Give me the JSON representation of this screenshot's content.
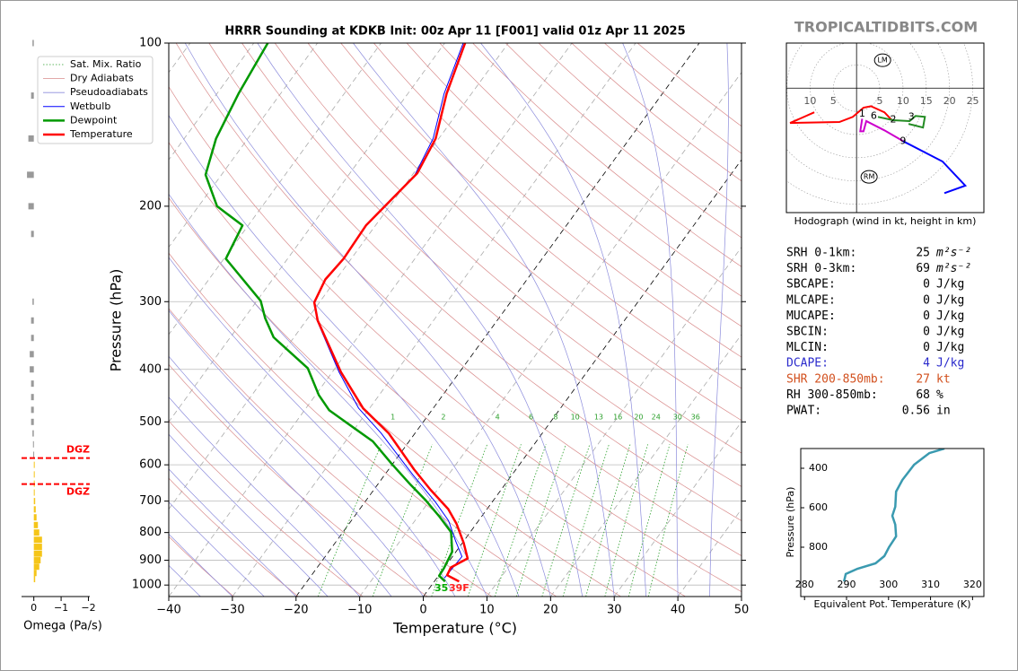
{
  "header": {
    "brand": "TROPICALTIDBITS.COM"
  },
  "chart_data": [
    {
      "type": "skewt",
      "title": "HRRR Sounding at KDKB Init: 00z Apr 11 [F001] valid 01z Apr 11 2025",
      "xlabel": "Temperature (°C)",
      "ylabel": "Pressure (hPa)",
      "xlim": [
        -40,
        50
      ],
      "ylim": [
        1050,
        100
      ],
      "log_y": true,
      "grid": true,
      "legend": "upper left",
      "xticks": [
        {
          "value": -40,
          "label": "−40"
        },
        {
          "value": -30,
          "label": "−30"
        },
        {
          "value": -20,
          "label": "−20"
        },
        {
          "value": -10,
          "label": "−10"
        },
        0,
        10,
        20,
        30,
        40,
        50
      ],
      "yticks": [
        100,
        200,
        300,
        400,
        500,
        600,
        700,
        800,
        900,
        1000
      ],
      "isotherm_highlight": [
        -20,
        0
      ],
      "reference_lines": [
        {
          "name": "Sat. Mix. Ratio",
          "color": "#2ca02c",
          "style": "dotted",
          "values": [
            1,
            2,
            4,
            6,
            8,
            10,
            13,
            16,
            20,
            24,
            30,
            36
          ]
        },
        {
          "name": "Dry Adiabats",
          "color": "#d98c8c",
          "style": "solid"
        },
        {
          "name": "Pseudoadiabats",
          "color": "#8c8cdc",
          "style": "solid"
        }
      ],
      "series": [
        {
          "name": "Wetbulb",
          "color": "#0000ff",
          "width": 1,
          "pressure": [
            970,
            886,
            829,
            761,
            703,
            627,
            524,
            472,
            405,
            325,
            301,
            273,
            250,
            217,
            175,
            150,
            124,
            100
          ],
          "values": [
            1.2,
            1.5,
            -1.3,
            -4.7,
            -8.9,
            -15.5,
            -25.4,
            -31.7,
            -38.9,
            -48.3,
            -50.8,
            -51.7,
            -51.2,
            -51.5,
            -49.6,
            -50.9,
            -54.3,
            -57.1
          ]
        },
        {
          "name": "Dewpoint",
          "color": "#009900",
          "width": 2.5,
          "pressure": [
            985,
            961,
            931,
            868,
            799,
            748,
            698,
            653,
            596,
            543,
            476,
            446,
            398,
            349,
            322,
            299,
            250,
            217,
            200,
            175,
            150,
            124,
            100
          ],
          "values": [
            1.7,
            0.1,
            0.0,
            -0.6,
            -3.0,
            -6.6,
            -10.6,
            -14.8,
            -20.3,
            -25.7,
            -36.1,
            -39.5,
            -44.3,
            -53.2,
            -56.7,
            -59.4,
            -69.7,
            -70.9,
            -77.1,
            -82.5,
            -85.0,
            -86.6,
            -87.8
          ]
        },
        {
          "name": "Temperature",
          "color": "#ff0000",
          "width": 2.5,
          "pressure": [
            985,
            959,
            928,
            893,
            836,
            771,
            724,
            667,
            612,
            525,
            472,
            405,
            325,
            301,
            273,
            250,
            217,
            174,
            150,
            124,
            100
          ],
          "values": [
            3.9,
            1.3,
            1.0,
            2.6,
            0.2,
            -3.1,
            -6.1,
            -11.1,
            -16.0,
            -24.1,
            -31.0,
            -38.6,
            -48.2,
            -50.8,
            -51.7,
            -51.2,
            -51.5,
            -49.4,
            -50.5,
            -53.9,
            -56.8
          ]
        }
      ],
      "annotations": [
        {
          "text": "35",
          "color": "#00aa00"
        },
        {
          "text": "39F",
          "color": "#ff2020"
        }
      ]
    },
    {
      "type": "hbar",
      "xlabel": "Omega (Pa/s)",
      "xlim": [
        0.45,
        -2.05
      ],
      "xticks": [
        0,
        {
          "value": -1,
          "label": "−1"
        },
        {
          "value": -2,
          "label": "−2"
        }
      ],
      "colors": {
        "positive": "#999999",
        "negative": "#f5c518"
      },
      "pressure": [
        100,
        125,
        150,
        175,
        200,
        225,
        300,
        325,
        350,
        375,
        400,
        425,
        450,
        475,
        500,
        525,
        550,
        575,
        600,
        625,
        650,
        675,
        700,
        725,
        750,
        775,
        800,
        825,
        850,
        875,
        900,
        925,
        950,
        975
      ],
      "values": [
        0.05,
        0.1,
        0.2,
        0.25,
        0.2,
        0.1,
        0.05,
        0.1,
        0.1,
        0.15,
        0.15,
        0.1,
        0.1,
        0.1,
        0.1,
        0.05,
        0.03,
        0.02,
        -0.02,
        -0.02,
        -0.02,
        -0.03,
        -0.05,
        -0.07,
        -0.1,
        -0.15,
        -0.2,
        -0.3,
        -0.3,
        -0.3,
        -0.25,
        -0.2,
        -0.1,
        -0.05
      ],
      "dgz": [
        {
          "pressure": 583,
          "label": "DGZ"
        },
        {
          "pressure": 651,
          "label": "DGZ"
        }
      ]
    },
    {
      "type": "hodograph",
      "caption": "Hodograph (wind in kt, height in km)",
      "xlim": [
        -15.1,
        27.4
      ],
      "ylim": [
        -26.8,
        9.7
      ],
      "xticks": [
        {
          "value": -10,
          "label": "10"
        },
        {
          "value": -5,
          "label": "5"
        },
        5,
        10,
        15,
        20,
        25
      ],
      "series": [
        {
          "color": "#ff0000",
          "x": [
            -9.1,
            -14.3,
            -3.7,
            -0.8,
            1.5,
            3.1,
            6.0,
            7.5
          ],
          "values": [
            -5.2,
            -7.5,
            -7.3,
            -6.2,
            -4.2,
            -3.9,
            -5.2,
            -6.8
          ]
        },
        {
          "color": "#cc00cc",
          "x": [
            1.2,
            0.8,
            1.5,
            2.1,
            6.0,
            10.0
          ],
          "values": [
            -6.6,
            -9.3,
            -9.3,
            -7.1,
            -9.1,
            -11.4
          ]
        },
        {
          "color": "#228b22",
          "x": [
            4.6,
            7.9,
            11.4,
            12.7,
            14.7,
            14.3,
            11.2
          ],
          "values": [
            -6.2,
            -6.9,
            -7.1,
            -6.0,
            -6.2,
            -8.5,
            -7.7
          ]
        },
        {
          "color": "#0000ff",
          "x": [
            10.0,
            18.5,
            23.4,
            18.9
          ],
          "values": [
            -11.4,
            -15.8,
            -21.0,
            -22.6
          ]
        }
      ],
      "height_labels": [
        {
          "label": 1,
          "x": 1.2,
          "value": -5.6
        },
        {
          "label": 6,
          "x": 3.7,
          "value": -6.0
        },
        {
          "label": 2,
          "x": 7.9,
          "value": -6.8
        },
        {
          "label": 3,
          "x": 11.8,
          "value": -6.2
        },
        {
          "label": 9,
          "x": 10.0,
          "value": -11.4
        }
      ],
      "markers": [
        {
          "label": "LM",
          "x": 5.6,
          "value": 6.0
        },
        {
          "label": "RM",
          "x": 2.7,
          "value": -19.1
        }
      ]
    },
    {
      "type": "line",
      "xlabel": "Equivalent Pot. Temperature (K)",
      "ylabel": "Pressure (hPa)",
      "xlim": [
        279.1,
        322.7
      ],
      "ylim": [
        1050,
        300
      ],
      "xticks": [
        280,
        290,
        300,
        310,
        320
      ],
      "yticks": [
        400,
        600,
        800
      ],
      "color": "#3a9ab0",
      "x": [
        289.4,
        289.8,
        292.6,
        296.9,
        299.0,
        300.1,
        301.8,
        301.6,
        300.9,
        301.6,
        301.8,
        303.3,
        306.1,
        309.7,
        313.3
      ],
      "values": [
        973,
        936,
        909,
        882,
        845,
        800,
        745,
        686,
        641,
        595,
        518,
        459,
        382,
        323,
        300
      ]
    }
  ],
  "indices": {
    "rows": [
      {
        "label": "SRH 0-1km:",
        "value": 25,
        "unit": "m²s⁻²"
      },
      {
        "label": "SRH 0-3km:",
        "value": 69,
        "unit": "m²s⁻²"
      },
      {
        "label": "SBCAPE:",
        "value": 0,
        "unit": "J/kg"
      },
      {
        "label": "MLCAPE:",
        "value": 0,
        "unit": "J/kg"
      },
      {
        "label": "MUCAPE:",
        "value": 0,
        "unit": "J/kg"
      },
      {
        "label": "SBCIN:",
        "value": 0,
        "unit": "J/kg"
      },
      {
        "label": "MLCIN:",
        "value": 0,
        "unit": "J/kg"
      },
      {
        "label": "DCAPE:",
        "value": 4,
        "unit": "J/kg",
        "color": "#2a2acc"
      },
      {
        "label": "SHR 200-850mb:",
        "value": 27,
        "unit": "kt",
        "color": "#d2501e"
      },
      {
        "label": "RH 300-850mb:",
        "value": 68,
        "unit": "%"
      },
      {
        "label": "PWAT:",
        "value": 0.56,
        "unit": "in"
      }
    ]
  }
}
